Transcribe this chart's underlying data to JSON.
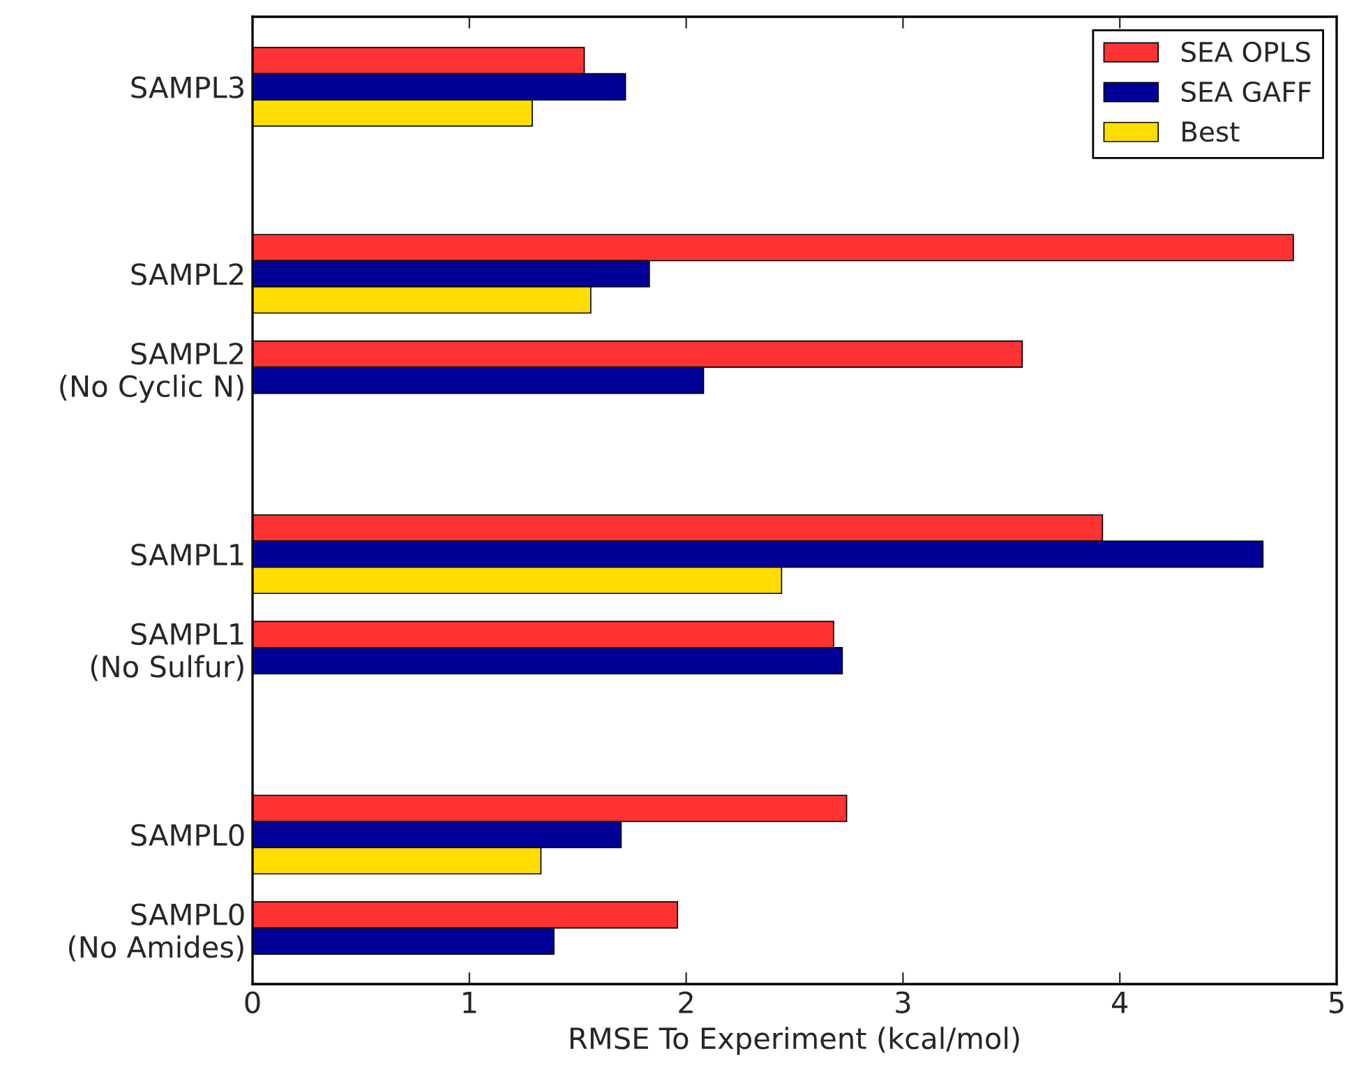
{
  "chart_data": {
    "type": "bar",
    "orientation": "horizontal",
    "xlabel": "RMSE To Experiment (kcal/mol)",
    "categories": [
      "SAMPL3",
      null,
      "SAMPL2",
      "SAMPL2\n(No Cyclic N)",
      null,
      "SAMPL1",
      "SAMPL1\n(No Sulfur)",
      null,
      "SAMPL0",
      "SAMPL0\n(No Amides)"
    ],
    "series": [
      {
        "name": "SEA OPLS",
        "color": "#ff3333",
        "values": [
          1.53,
          null,
          4.8,
          3.55,
          null,
          3.92,
          2.68,
          null,
          2.74,
          1.96
        ]
      },
      {
        "name": "SEA GAFF",
        "color": "#000099",
        "values": [
          1.72,
          null,
          1.83,
          2.08,
          null,
          4.66,
          2.72,
          null,
          1.7,
          1.39
        ]
      },
      {
        "name": "Best",
        "color": "#ffdd00",
        "values": [
          1.29,
          null,
          1.56,
          null,
          null,
          2.44,
          null,
          null,
          1.33,
          null
        ]
      }
    ],
    "xlim": [
      0,
      5
    ],
    "xticks": [
      0,
      1,
      2,
      3,
      4,
      5
    ],
    "legend": "top right",
    "grid": false
  }
}
